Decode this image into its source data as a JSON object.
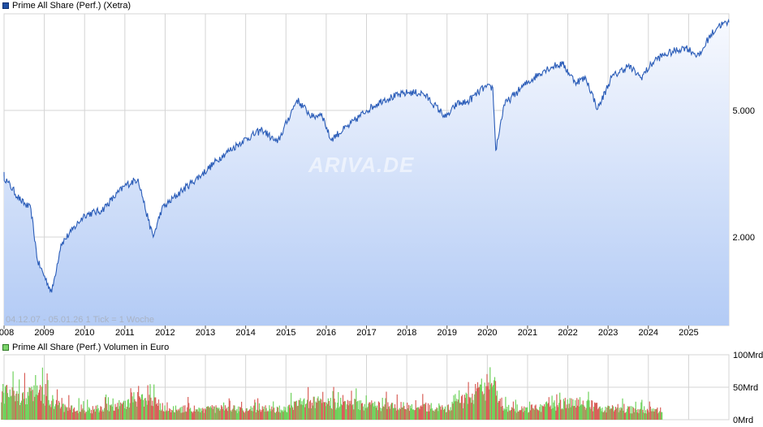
{
  "price_legend": "Prime All Share (Perf.) (Xetra)",
  "volume_legend": "Prime All Share (Perf.) Volumen in Euro",
  "info_text": "04.12.07 - 05.01.26    1 Tick = 1 Woche",
  "watermark": "ARIVA.DE",
  "colors": {
    "price_line": "#2a5cb8",
    "area_top": "#f7f9fe",
    "area_bottom": "#b3cbf5",
    "grid": "#d4d4d4",
    "volume_up": "#6fd25c",
    "volume_down": "#d9605a"
  },
  "chart_data": [
    {
      "type": "line",
      "series": [
        {
          "x": [
            "2007-12-04",
            "2008-02-01",
            "2008-06-01",
            "2008-09-01",
            "2008-11-01",
            "2009-03-09",
            "2009-06-01",
            "2009-09-01",
            "2010-01-01",
            "2010-06-01",
            "2011-01-01",
            "2011-05-01",
            "2011-08-01",
            "2011-09-15",
            "2011-12-01",
            "2012-06-01",
            "2012-12-01",
            "2013-06-01",
            "2013-12-01",
            "2014-06-01",
            "2014-10-15",
            "2015-04-10",
            "2015-09-01",
            "2015-11-20",
            "2016-02-10",
            "2016-08-01",
            "2017-01-01",
            "2017-06-01",
            "2018-01-20",
            "2018-06-01",
            "2018-12-25",
            "2019-04-01",
            "2019-07-01",
            "2019-12-01",
            "2020-02-20",
            "2020-03-18",
            "2020-06-01",
            "2020-12-01",
            "2021-06-01",
            "2021-09-01",
            "2021-11-15",
            "2022-03-08",
            "2022-06-15",
            "2022-09-29",
            "2023-02-01",
            "2023-07-01",
            "2023-10-27",
            "2024-03-01",
            "2024-05-15",
            "2024-12-01",
            "2025-04-08",
            "2025-07-01",
            "2025-10-01",
            "2026-01-05"
          ],
          "values": [
            3200,
            2980,
            2600,
            2450,
            1680,
            1340,
            1900,
            2080,
            2350,
            2420,
            2900,
            3050,
            2260,
            2000,
            2450,
            2800,
            3150,
            3600,
            4000,
            4350,
            3950,
            5400,
            4750,
            4900,
            4050,
            4500,
            5000,
            5400,
            5700,
            5650,
            4750,
            5250,
            5300,
            5900,
            5900,
            3750,
            5200,
            6000,
            6700,
            6900,
            7000,
            6150,
            6300,
            5050,
            6350,
            6900,
            6350,
            7200,
            7450,
            7900,
            7400,
            8450,
            9250,
            9450
          ]
        }
      ],
      "x_ticks": [
        "2008",
        "2009",
        "2010",
        "2011",
        "2012",
        "2013",
        "2014",
        "2015",
        "2016",
        "2017",
        "2018",
        "2019",
        "2020",
        "2021",
        "2022",
        "2023",
        "2024",
        "2025"
      ],
      "y_ticks": [
        "5.000",
        "2.000"
      ],
      "y_scale": "log",
      "grid": true
    },
    {
      "type": "bar",
      "y_ticks": [
        "100Mrd",
        "50Mrd",
        "0Mrd"
      ],
      "ylim": [
        0,
        100
      ],
      "unit": "Mrd",
      "grid": true,
      "volume_profile": {
        "x": [
          "2007-12-04",
          "2008-06-01",
          "2008-11-01",
          "2009-06-01",
          "2010-01-01",
          "2011-08-15",
          "2012-01-01",
          "2015-01-01",
          "2015-06-01",
          "2018-01-01",
          "2019-01-01",
          "2020-03-15",
          "2020-06-01",
          "2021-01-01",
          "2022-03-01",
          "2023-01-01",
          "2024-01-01",
          "2024-05-01"
        ],
        "typical_values": [
          45,
          38,
          45,
          22,
          15,
          35,
          18,
          18,
          30,
          22,
          20,
          55,
          20,
          18,
          30,
          18,
          17,
          17
        ],
        "peak_values": [
          95,
          70,
          90,
          48,
          30,
          65,
          35,
          35,
          58,
          42,
          38,
          95,
          40,
          34,
          50,
          34,
          32,
          32
        ]
      }
    }
  ]
}
